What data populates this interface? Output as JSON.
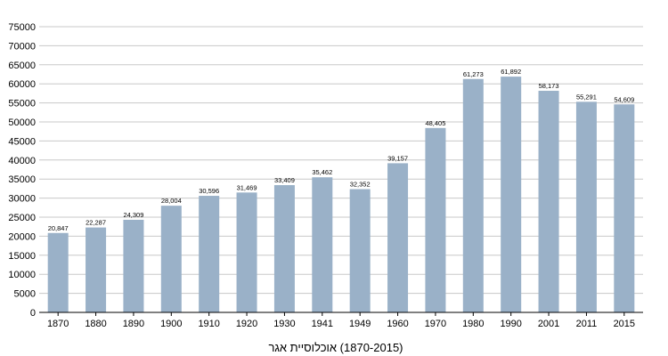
{
  "chart_data": {
    "type": "bar",
    "title": "",
    "xlabel": "(1870-2015) אוכלוסיית אגר",
    "ylabel": "",
    "ylim": [
      0,
      75000
    ],
    "yticks": [
      "0",
      "5000",
      "10000",
      "15000",
      "20000",
      "25000",
      "30000",
      "35000",
      "40000",
      "45000",
      "50000",
      "55000",
      "60000",
      "65000",
      "70000",
      "75000"
    ],
    "categories": [
      "1870",
      "1880",
      "1890",
      "1900",
      "1910",
      "1920",
      "1930",
      "1941",
      "1949",
      "1960",
      "1970",
      "1980",
      "1990",
      "2001",
      "2011",
      "2015"
    ],
    "values": [
      20847,
      22287,
      24309,
      28004,
      30596,
      31469,
      33409,
      35462,
      32352,
      39157,
      48405,
      61273,
      61892,
      58173,
      55291,
      54609
    ],
    "value_labels": [
      "20,847",
      "22,287",
      "24,309",
      "28,004",
      "30,596",
      "31,469",
      "33,409",
      "35,462",
      "32,352",
      "39,157",
      "48,405",
      "61,273",
      "61,892",
      "58,173",
      "55,291",
      "54,609"
    ],
    "grid": true,
    "colors": {
      "bar": "#9ab1c8",
      "grid": "#c8c8c8",
      "axis": "#000000"
    }
  }
}
